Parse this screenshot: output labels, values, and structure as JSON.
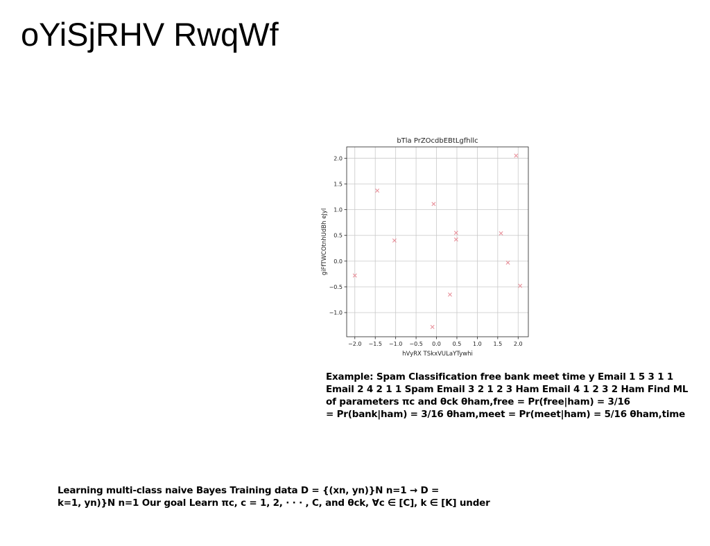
{
  "slide": {
    "title": "oYiSjRHV RwqWf"
  },
  "example": {
    "lines": [
      "Example: Spam Classification free bank meet time y Email 1 5 3 1 1",
      "Email 2 4 2 1 1 Spam Email 3 2 1 2 3 Ham Email 4 1 2 3 2 Ham Find ML",
      "of parameters πc and θck θham,free = Pr(free|ham) = 3/16",
      "= Pr(bank|ham) = 3/16 θham,meet = Pr(meet|ham) = 5/16 θham,time"
    ]
  },
  "learning": {
    "lines": [
      "Learning multi-class naive Bayes Training data D = {(xn, yn)}N n=1 → D =",
      "k=1, yn)}N n=1 Our goal Learn πc, c = 1, 2, · · · , C, and θck, ∀c ∈ [C], k ∈ [K] under"
    ]
  },
  "chart_data": {
    "type": "scatter",
    "title": "bTla PrZOcdbEBtLgfhllc",
    "xlabel": "hVyRX TSkxVULaYTywhi",
    "ylabel": "giFfTWCOtnhUdBh eJyl",
    "xlim": [
      -2.2,
      2.25
    ],
    "ylim": [
      -1.47,
      2.22
    ],
    "xticks": [
      -2.0,
      -1.5,
      -1.0,
      -0.5,
      0.0,
      0.5,
      1.0,
      1.5,
      2.0
    ],
    "xtick_labels": [
      "−2.0",
      "−1.5",
      "−1.0",
      "−0.5",
      "0.0",
      "0.5",
      "1.0",
      "1.5",
      "2.0"
    ],
    "yticks": [
      -1.0,
      -0.5,
      0.0,
      0.5,
      1.0,
      1.5,
      2.0
    ],
    "ytick_labels": [
      "−1.0",
      "−0.5",
      "0.0",
      "0.5",
      "1.0",
      "1.5",
      "2.0"
    ],
    "grid": true,
    "marker": "x",
    "color": "#e8909a",
    "points": [
      {
        "x": -2.0,
        "y": -0.28
      },
      {
        "x": -1.45,
        "y": 1.37
      },
      {
        "x": -1.03,
        "y": 0.4
      },
      {
        "x": -0.07,
        "y": 1.11
      },
      {
        "x": -0.1,
        "y": -1.28
      },
      {
        "x": 0.33,
        "y": -0.65
      },
      {
        "x": 0.48,
        "y": 0.55
      },
      {
        "x": 0.48,
        "y": 0.42
      },
      {
        "x": 1.58,
        "y": 0.54
      },
      {
        "x": 1.75,
        "y": -0.03
      },
      {
        "x": 1.95,
        "y": 2.05
      },
      {
        "x": 2.05,
        "y": -0.48
      }
    ]
  }
}
